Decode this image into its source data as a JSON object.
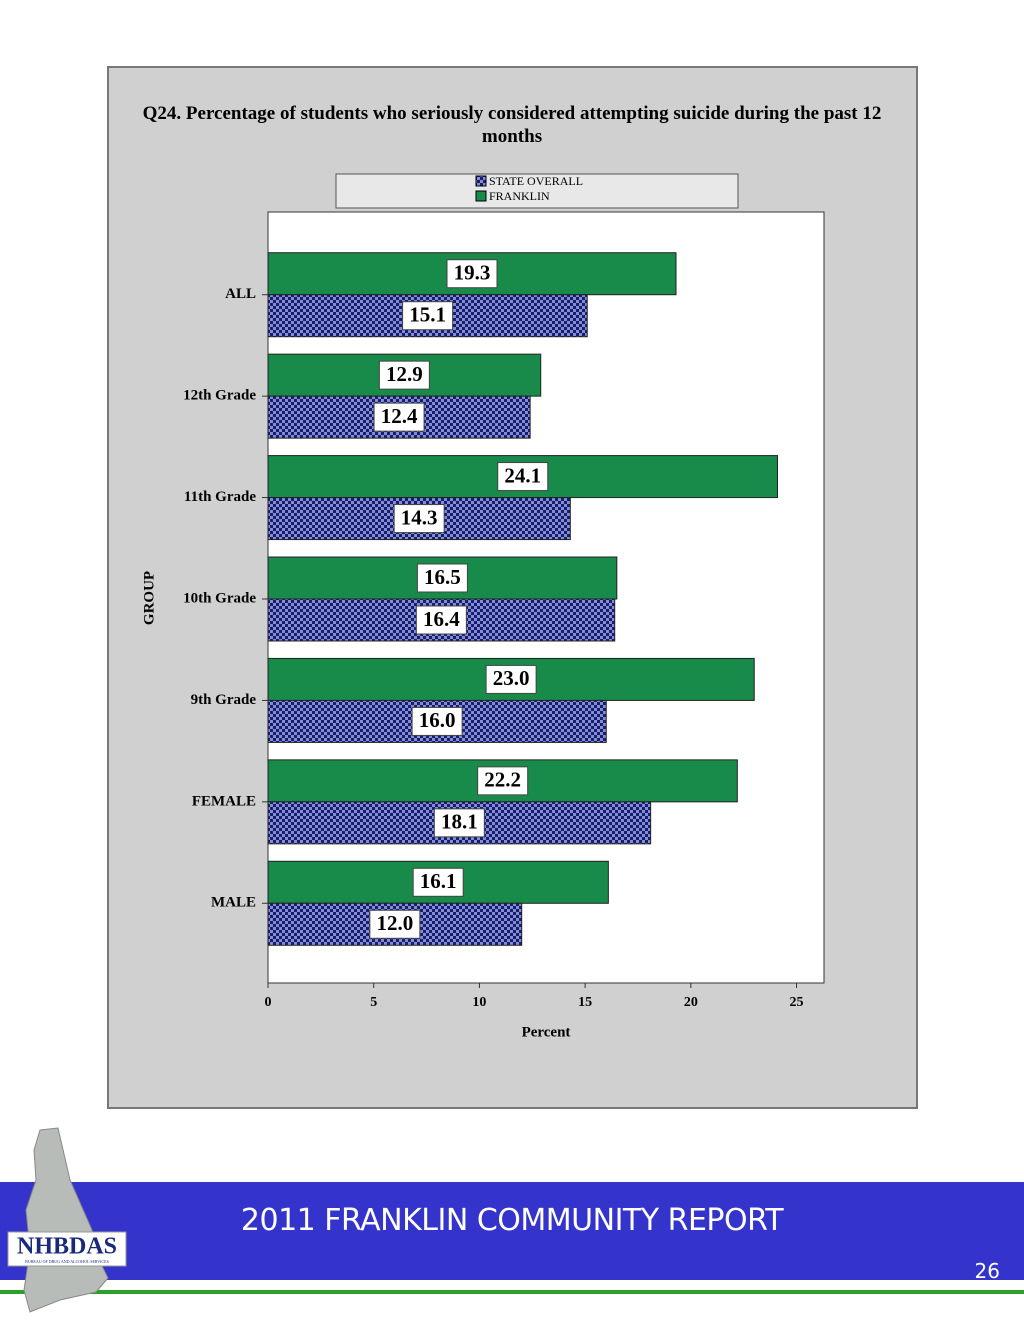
{
  "chart_data": {
    "type": "bar",
    "orientation": "horizontal",
    "title": "Q24. Percentage of students who seriously considered attempting suicide during the past 12 months",
    "xlabel": "Percent",
    "ylabel": "GROUP",
    "categories": [
      "ALL",
      "12th Grade",
      "11th Grade",
      "10th Grade",
      "9th Grade",
      "FEMALE",
      "MALE"
    ],
    "series": [
      {
        "name": "STATE OVERALL",
        "color": "#1c1c6a",
        "pattern": "checker",
        "values": [
          15.1,
          12.4,
          14.3,
          16.4,
          16.0,
          18.1,
          12.0
        ],
        "value_labels": [
          "15.1",
          "12.4",
          "14.3",
          "16.4",
          "16.0",
          "18.1",
          "12.0"
        ]
      },
      {
        "name": "FRANKLIN",
        "color": "#188a4a",
        "values": [
          19.3,
          12.9,
          24.1,
          16.5,
          23.0,
          22.2,
          16.1
        ],
        "value_labels": [
          "19.3",
          "12.9",
          "24.1",
          "16.5",
          "23.0",
          "22.2",
          "16.1"
        ]
      }
    ],
    "xlim": [
      0,
      26.3
    ],
    "xticks": [
      0,
      5,
      10,
      15,
      20,
      25
    ],
    "grid": false
  },
  "footer": {
    "title": "2011 FRANKLIN COMMUNITY REPORT",
    "page": "26",
    "logo": "NHBDAS",
    "logo_subtitle": "BUREAU OF DRUG AND ALCOHOL SERVICES"
  }
}
